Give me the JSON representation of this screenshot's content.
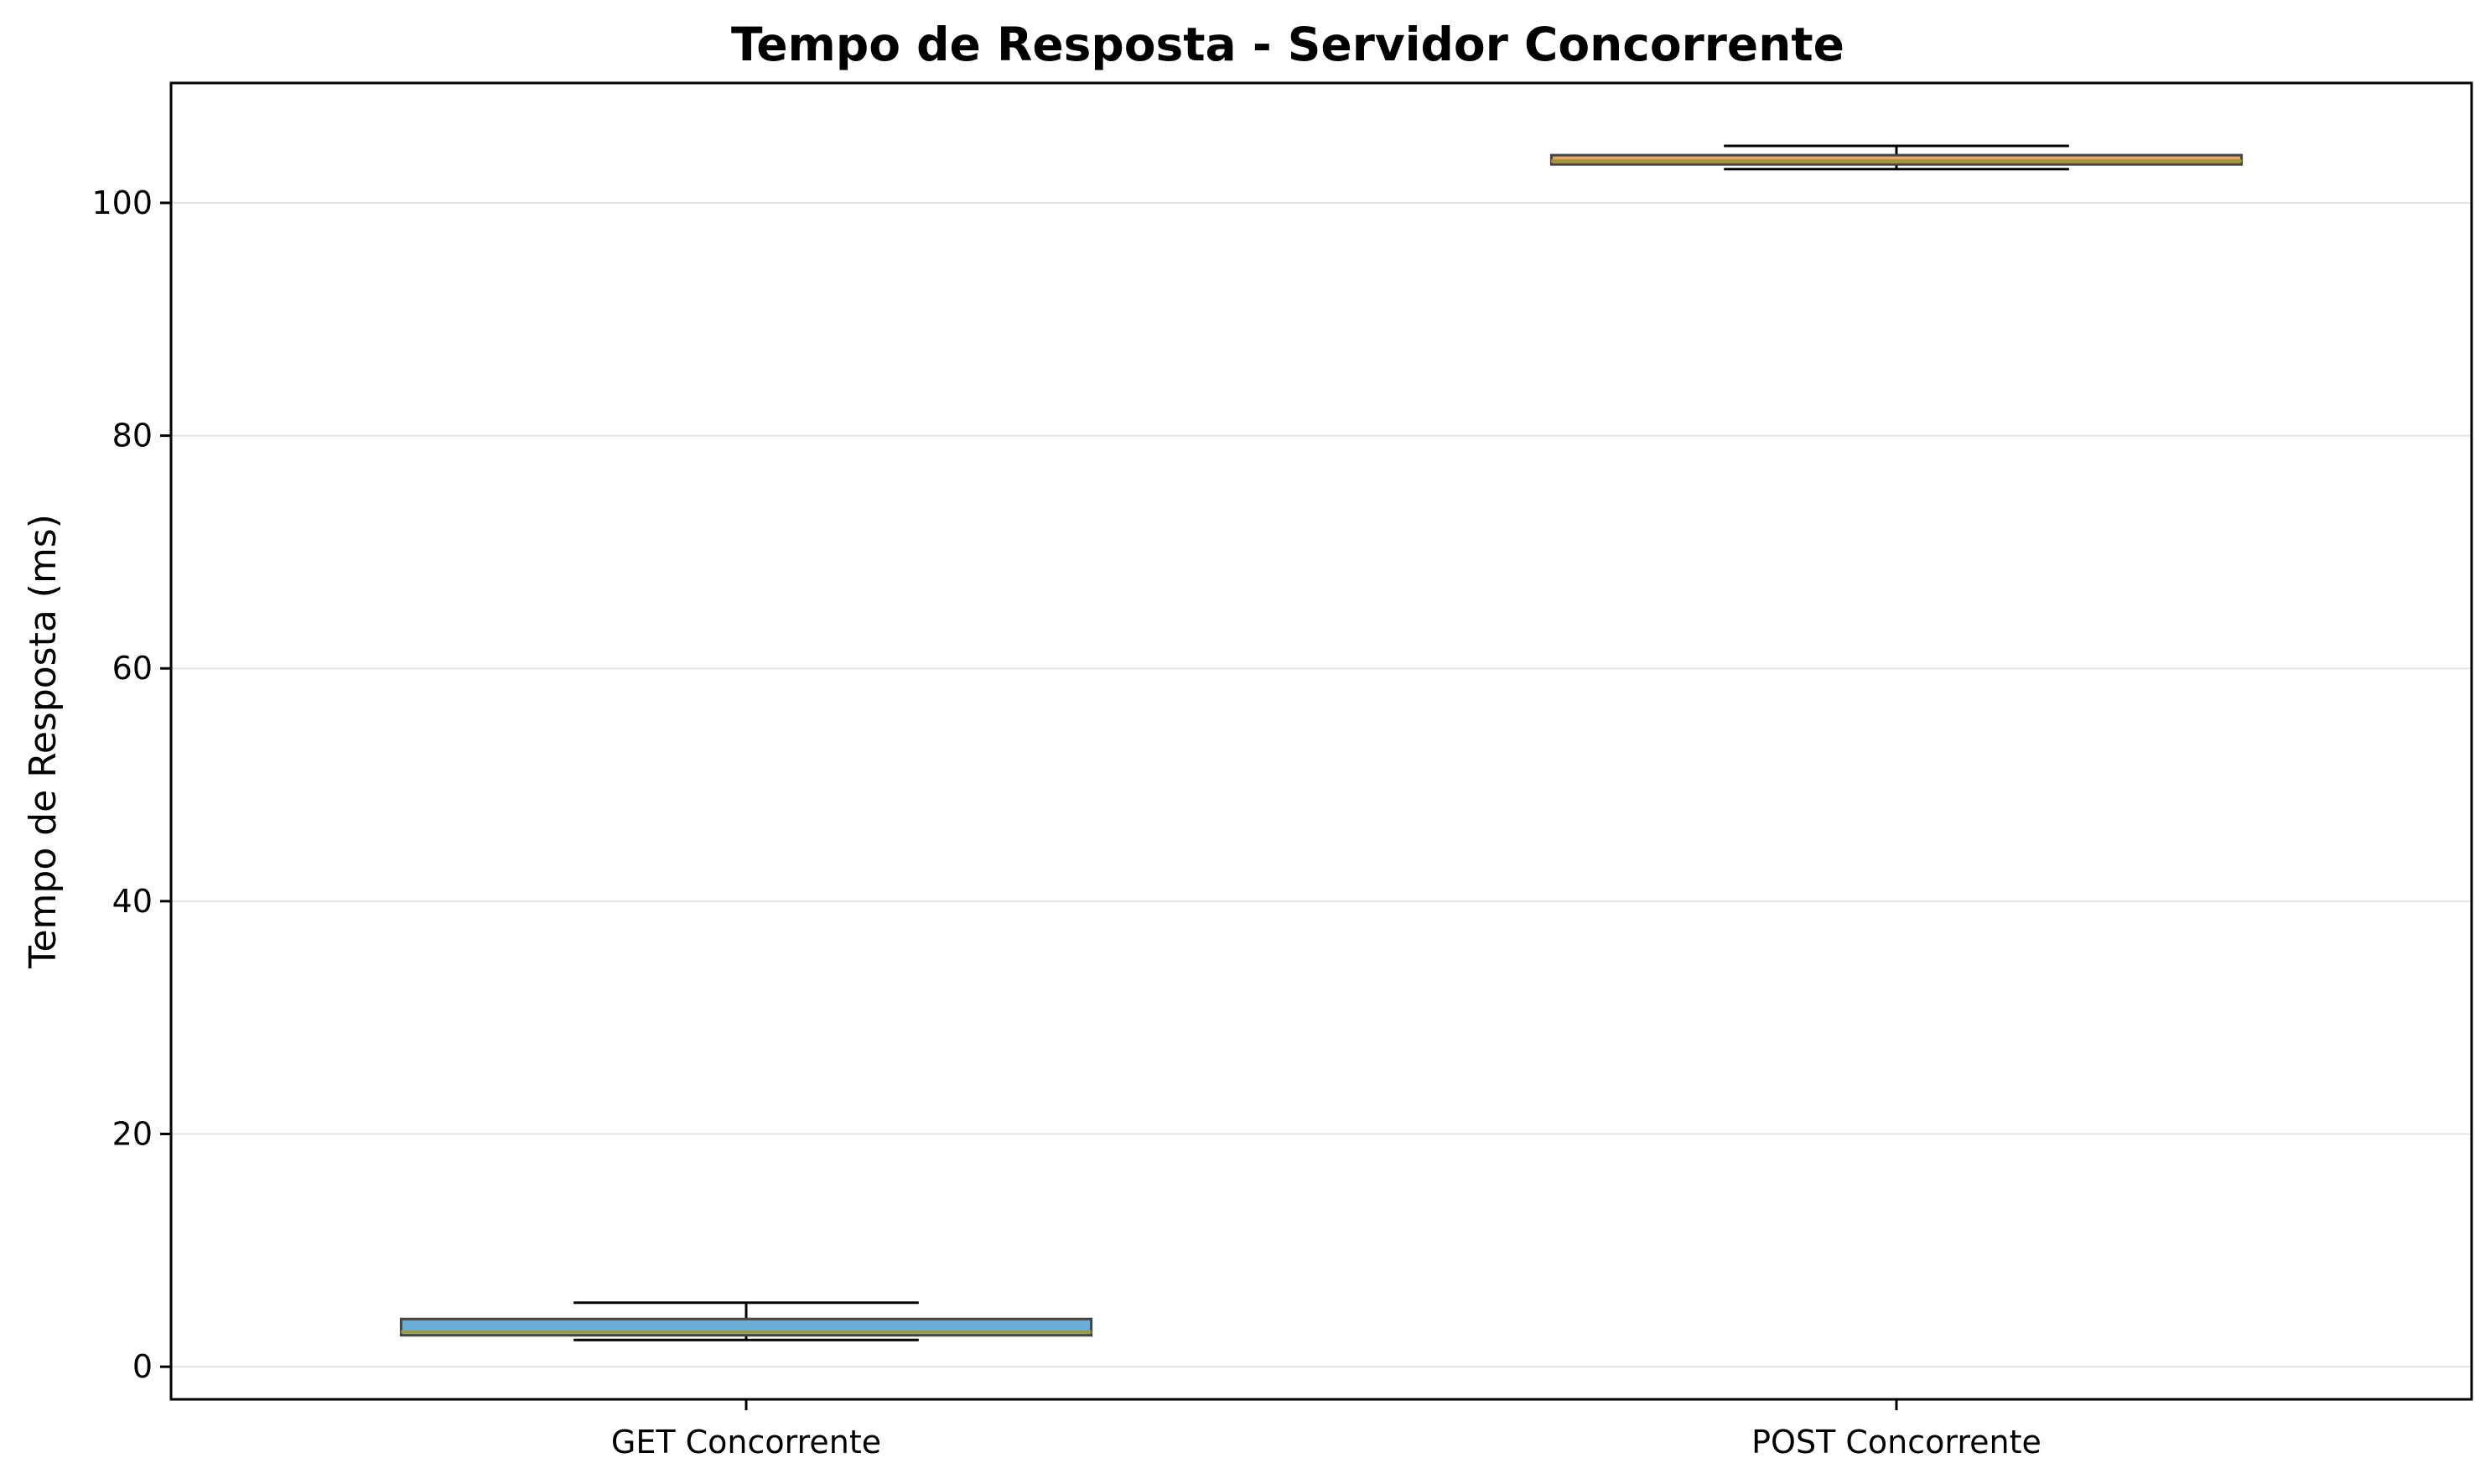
{
  "chart_data": {
    "type": "box",
    "title": "Tempo de Resposta - Servidor Concorrente",
    "xlabel": "",
    "ylabel": "Tempo de Resposta (ms)",
    "ylim": [
      -2.8,
      110.3
    ],
    "yticks": [
      "0",
      "20",
      "40",
      "60",
      "80",
      "100"
    ],
    "grid": "y",
    "categories": [
      "GET Concorrente",
      "POST Concorrente"
    ],
    "boxes": [
      {
        "label": "GET Concorrente",
        "whisker_low": 2.3,
        "q1": 2.7,
        "median": 3.0,
        "q3": 4.1,
        "whisker_high": 5.5,
        "color": "#6baed6"
      },
      {
        "label": "POST Concorrente",
        "whisker_low": 102.9,
        "q1": 103.3,
        "median": 103.6,
        "q3": 104.1,
        "whisker_high": 104.9,
        "color": "#f0a35e"
      }
    ],
    "median_color": "#9e9a3c"
  }
}
